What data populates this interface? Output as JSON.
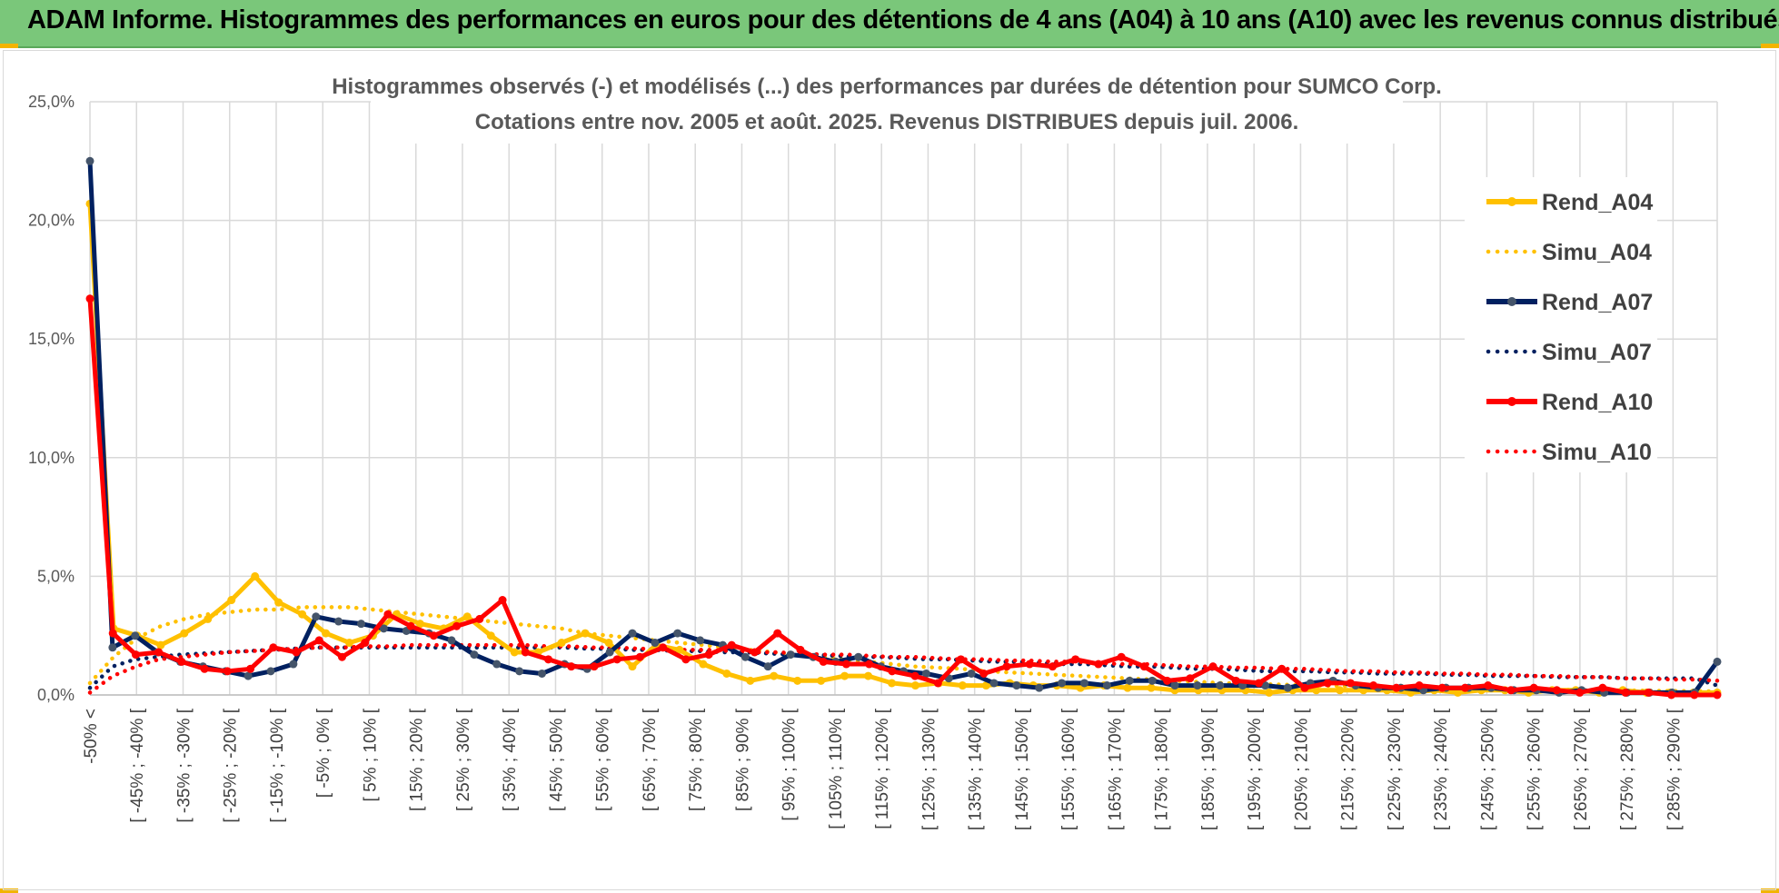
{
  "header": {
    "title": "ADAM Informe. Histogrammes des performances en euros pour des détentions de 4 ans (A04) à 10 ans (A10) avec les revenus connus distribués"
  },
  "colors": {
    "banner": "#7ac77a",
    "a04": "#FFC000",
    "a07": "#002060",
    "a07_marker": "#44546A",
    "a10": "#FF0000",
    "grid": "#d9d9d9"
  },
  "chart_data": {
    "type": "line",
    "title_line1": "Histogrammes observés (-) et modélisés (...) des performances par durées de détention pour SUMCO Corp.",
    "title_line2": "Cotations entre nov. 2005 et août. 2025. Revenus DISTRIBUES depuis juil. 2006.",
    "ylim": [
      0,
      25
    ],
    "y_ticks": [
      "0,0%",
      "5,0%",
      "10,0%",
      "15,0%",
      "20,0%",
      "25,0%"
    ],
    "y_tick_values": [
      0,
      5,
      10,
      15,
      20,
      25
    ],
    "grid": true,
    "legend_position": "right",
    "x_labels": [
      "-50% <",
      "[ -45% ; -40% [",
      "[ -35% ; -30% [",
      "[ -25% ; -20% [",
      "[ -15% ; -10% [",
      "[ -5% ; 0% [",
      "[ 5% ; 10% [",
      "[ 15% ; 20% [",
      "[ 25% ; 30% [",
      "[ 35% ; 40% [",
      "[ 45% ; 50% [",
      "[ 55% ; 60% [",
      "[ 65% ; 70% [",
      "[ 75% ; 80% [",
      "[ 85% ; 90% [",
      "[ 95% ; 100% [",
      "[ 105% ; 110% [",
      "[ 115% ; 120% [",
      "[ 125% ; 130% [",
      "[ 135% ; 140% [",
      "[ 145% ; 150% [",
      "[ 155% ; 160% [",
      "[ 165% ; 170% [",
      "[ 175% ; 180% [",
      "[ 185% ; 190% [",
      "[ 195% ; 200% [",
      "[ 205% ; 210% [",
      "[ 215% ; 220% [",
      "[ 225% ; 230% [",
      "[ 235% ; 240% [",
      "[ 245% ; 250% [",
      "[ 255% ; 260% [",
      "[ 265% ; 270% [",
      "[ 275% ; 280% [",
      "[ 285% ; 290% ["
    ],
    "series": [
      {
        "name": "Rend_A04",
        "style": "solid",
        "color": "#FFC000",
        "values": [
          20.7,
          2.8,
          2.5,
          2.1,
          2.6,
          3.2,
          4.0,
          5.0,
          3.9,
          3.4,
          2.6,
          2.2,
          2.5,
          3.4,
          3.0,
          2.8,
          3.3,
          2.5,
          1.8,
          1.8,
          2.2,
          2.6,
          2.2,
          1.2,
          2.1,
          1.9,
          1.3,
          0.9,
          0.6,
          0.8,
          0.6,
          0.6,
          0.8,
          0.8,
          0.5,
          0.4,
          0.5,
          0.4,
          0.4,
          0.5,
          0.4,
          0.4,
          0.3,
          0.4,
          0.3,
          0.3,
          0.2,
          0.2,
          0.2,
          0.2,
          0.1,
          0.2,
          0.2,
          0.2,
          0.2,
          0.2,
          0.1,
          0.2,
          0.1,
          0.2,
          0.2,
          0.1,
          0.2,
          0.2,
          0.1,
          0.2,
          0.1,
          0.1,
          0.1,
          0.1
        ]
      },
      {
        "name": "Simu_A04",
        "style": "dotted",
        "color": "#FFC000",
        "values": [
          0.5,
          1.6,
          2.4,
          2.9,
          3.2,
          3.4,
          3.5,
          3.6,
          3.6,
          3.7,
          3.7,
          3.7,
          3.6,
          3.5,
          3.4,
          3.3,
          3.2,
          3.1,
          3.0,
          2.9,
          2.8,
          2.6,
          2.5,
          2.4,
          2.3,
          2.2,
          2.1,
          2.0,
          1.9,
          1.8,
          1.7,
          1.6,
          1.5,
          1.4,
          1.3,
          1.2,
          1.15,
          1.1,
          1.0,
          0.95,
          0.9,
          0.85,
          0.8,
          0.75,
          0.7,
          0.65,
          0.6,
          0.55,
          0.5,
          0.48,
          0.45,
          0.42,
          0.4,
          0.38,
          0.35,
          0.33,
          0.3,
          0.28,
          0.27,
          0.25,
          0.24,
          0.23,
          0.22,
          0.21,
          0.2,
          0.19,
          0.18,
          0.17,
          0.16,
          0.15
        ]
      },
      {
        "name": "Rend_A07",
        "style": "solid",
        "color": "#002060",
        "values": [
          22.5,
          2.0,
          2.5,
          1.8,
          1.4,
          1.2,
          1.0,
          0.8,
          1.0,
          1.3,
          3.3,
          3.1,
          3.0,
          2.8,
          2.7,
          2.6,
          2.3,
          1.7,
          1.3,
          1.0,
          0.9,
          1.3,
          1.1,
          1.8,
          2.6,
          2.2,
          2.6,
          2.3,
          2.1,
          1.6,
          1.2,
          1.7,
          1.6,
          1.4,
          1.6,
          1.2,
          1.0,
          0.9,
          0.7,
          0.9,
          0.5,
          0.4,
          0.3,
          0.5,
          0.5,
          0.4,
          0.6,
          0.6,
          0.4,
          0.4,
          0.4,
          0.4,
          0.4,
          0.3,
          0.5,
          0.6,
          0.4,
          0.3,
          0.3,
          0.2,
          0.3,
          0.3,
          0.3,
          0.2,
          0.2,
          0.1,
          0.2,
          0.1,
          0.1,
          0.1,
          0.1,
          0.1,
          1.4
        ]
      },
      {
        "name": "Simu_A07",
        "style": "dotted",
        "color": "#002060",
        "values": [
          0.3,
          1.2,
          1.5,
          1.6,
          1.7,
          1.75,
          1.8,
          1.85,
          1.9,
          1.95,
          2.0,
          2.0,
          2.0,
          2.0,
          2.0,
          2.0,
          2.0,
          2.0,
          2.0,
          2.0,
          2.0,
          2.0,
          1.95,
          1.95,
          1.9,
          1.9,
          1.85,
          1.85,
          1.8,
          1.8,
          1.75,
          1.7,
          1.7,
          1.65,
          1.6,
          1.6,
          1.55,
          1.5,
          1.5,
          1.45,
          1.4,
          1.4,
          1.35,
          1.3,
          1.3,
          1.25,
          1.2,
          1.2,
          1.15,
          1.1,
          1.1,
          1.05,
          1.0,
          1.0,
          1.0,
          0.95,
          0.95,
          0.9,
          0.9,
          0.9,
          0.85,
          0.85,
          0.8,
          0.8,
          0.8,
          0.75,
          0.75,
          0.75,
          0.7,
          0.7,
          0.7,
          0.7,
          0.4
        ]
      },
      {
        "name": "Rend_A10",
        "style": "solid",
        "color": "#FF0000",
        "values": [
          16.7,
          2.6,
          1.7,
          1.8,
          1.4,
          1.1,
          1.0,
          1.1,
          2.0,
          1.8,
          2.3,
          1.6,
          2.2,
          3.4,
          2.9,
          2.5,
          2.9,
          3.2,
          4.0,
          1.8,
          1.5,
          1.2,
          1.2,
          1.5,
          1.6,
          2.0,
          1.5,
          1.7,
          2.1,
          1.8,
          2.6,
          1.9,
          1.4,
          1.3,
          1.3,
          1.0,
          0.8,
          0.5,
          1.5,
          0.9,
          1.2,
          1.3,
          1.2,
          1.5,
          1.3,
          1.6,
          1.2,
          0.6,
          0.7,
          1.2,
          0.6,
          0.5,
          1.1,
          0.3,
          0.5,
          0.5,
          0.4,
          0.3,
          0.4,
          0.3,
          0.3,
          0.4,
          0.2,
          0.3,
          0.2,
          0.1,
          0.3,
          0.1,
          0.1,
          0.0,
          0.0,
          0.0
        ]
      },
      {
        "name": "Simu_A10",
        "style": "dotted",
        "color": "#FF0000",
        "values": [
          0.1,
          0.8,
          1.2,
          1.5,
          1.6,
          1.7,
          1.8,
          1.85,
          1.9,
          1.95,
          2.0,
          2.0,
          2.05,
          2.05,
          2.1,
          2.1,
          2.1,
          2.1,
          2.1,
          2.1,
          2.05,
          2.05,
          2.0,
          2.0,
          1.95,
          1.95,
          1.9,
          1.9,
          1.85,
          1.8,
          1.8,
          1.75,
          1.7,
          1.7,
          1.65,
          1.6,
          1.6,
          1.55,
          1.5,
          1.5,
          1.45,
          1.45,
          1.4,
          1.4,
          1.35,
          1.3,
          1.3,
          1.25,
          1.2,
          1.2,
          1.15,
          1.15,
          1.1,
          1.1,
          1.05,
          1.0,
          1.0,
          0.95,
          0.95,
          0.9,
          0.9,
          0.85,
          0.85,
          0.8,
          0.8,
          0.75,
          0.75,
          0.7,
          0.7,
          0.65,
          0.65,
          0.6
        ]
      }
    ]
  }
}
